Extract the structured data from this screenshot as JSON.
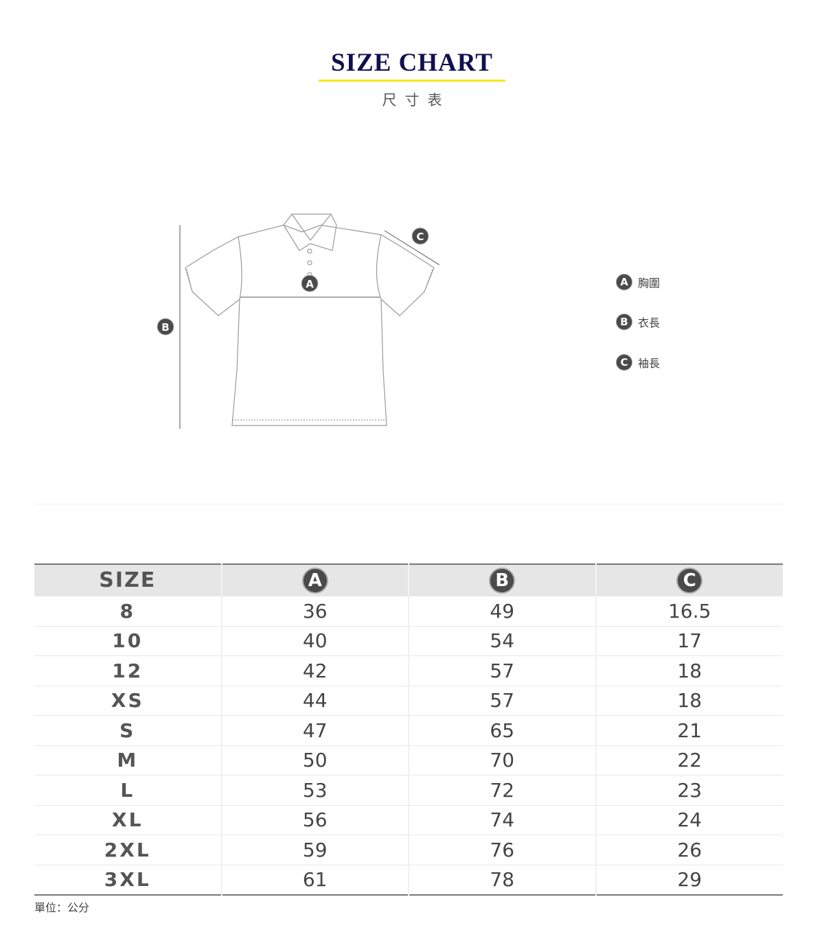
{
  "header": {
    "title": "SIZE CHART",
    "subtitle": "尺寸表"
  },
  "diagram": {
    "markers": [
      "A",
      "B",
      "C"
    ]
  },
  "legend": [
    {
      "marker": "A",
      "label": "胸圍"
    },
    {
      "marker": "B",
      "label": "衣長"
    },
    {
      "marker": "C",
      "label": "袖長"
    }
  ],
  "table": {
    "headers": [
      "SIZE",
      "A",
      "B",
      "C"
    ],
    "rows": [
      [
        "8",
        "36",
        "49",
        "16.5"
      ],
      [
        "10",
        "40",
        "54",
        "17"
      ],
      [
        "12",
        "42",
        "57",
        "18"
      ],
      [
        "XS",
        "44",
        "57",
        "18"
      ],
      [
        "S",
        "47",
        "65",
        "21"
      ],
      [
        "M",
        "50",
        "70",
        "22"
      ],
      [
        "L",
        "53",
        "72",
        "23"
      ],
      [
        "XL",
        "56",
        "74",
        "24"
      ],
      [
        "2XL",
        "59",
        "76",
        "26"
      ],
      [
        "3XL",
        "61",
        "78",
        "29"
      ]
    ]
  },
  "unit": "單位：公分",
  "colors": {
    "title": "#10104f",
    "underline": "#f5ea17",
    "badge": "#4a4a4a",
    "header_bg": "#e6e6e6"
  }
}
